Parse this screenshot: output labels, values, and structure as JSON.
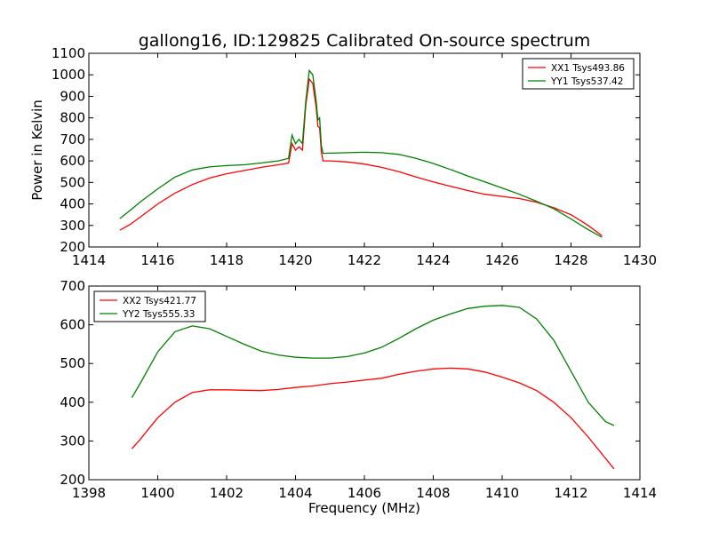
{
  "title": "gallong16, ID:129825 Calibrated On-source spectrum",
  "chart_data": [
    {
      "type": "line",
      "title": "gallong16, ID:129825 Calibrated On-source spectrum",
      "xlabel": "",
      "ylabel": "Power in Kelvin",
      "xlim": [
        1414,
        1430
      ],
      "ylim": [
        200,
        1100
      ],
      "xticks": [
        1414,
        1416,
        1418,
        1420,
        1422,
        1424,
        1426,
        1428,
        1430
      ],
      "yticks": [
        200,
        300,
        400,
        500,
        600,
        700,
        800,
        900,
        1000,
        1100
      ],
      "grid": false,
      "legend": "top-right",
      "series": [
        {
          "name": "XX1 Tsys493.86",
          "color": "#ff0000",
          "x": [
            1414.9,
            1415.2,
            1415.5,
            1416.0,
            1416.5,
            1417.0,
            1417.5,
            1418.0,
            1418.5,
            1419.0,
            1419.5,
            1419.8,
            1419.9,
            1420.0,
            1420.1,
            1420.2,
            1420.3,
            1420.4,
            1420.5,
            1420.6,
            1420.65,
            1420.7,
            1420.75,
            1420.8,
            1421.0,
            1421.5,
            1422.0,
            1422.5,
            1423.0,
            1423.5,
            1424.0,
            1424.5,
            1425.0,
            1425.5,
            1426.0,
            1426.5,
            1427.0,
            1427.5,
            1428.0,
            1428.5,
            1428.9
          ],
          "y": [
            278,
            305,
            340,
            400,
            450,
            490,
            520,
            540,
            555,
            570,
            582,
            590,
            680,
            650,
            665,
            650,
            860,
            980,
            960,
            850,
            760,
            755,
            640,
            600,
            600,
            595,
            585,
            570,
            550,
            525,
            502,
            482,
            462,
            445,
            435,
            425,
            408,
            382,
            350,
            300,
            252
          ]
        },
        {
          "name": "YY1 Tsys537.42",
          "color": "#008000",
          "x": [
            1414.9,
            1415.2,
            1415.5,
            1416.0,
            1416.5,
            1417.0,
            1417.5,
            1418.0,
            1418.5,
            1419.0,
            1419.5,
            1419.8,
            1419.9,
            1420.0,
            1420.1,
            1420.2,
            1420.3,
            1420.4,
            1420.5,
            1420.6,
            1420.65,
            1420.7,
            1420.75,
            1420.8,
            1421.0,
            1421.5,
            1422.0,
            1422.5,
            1423.0,
            1423.5,
            1424.0,
            1424.5,
            1425.0,
            1425.5,
            1426.0,
            1426.5,
            1427.0,
            1427.5,
            1428.0,
            1428.5,
            1428.9
          ],
          "y": [
            332,
            370,
            410,
            470,
            525,
            558,
            572,
            578,
            582,
            590,
            600,
            612,
            720,
            680,
            700,
            680,
            880,
            1020,
            1000,
            880,
            790,
            800,
            670,
            635,
            636,
            638,
            640,
            638,
            630,
            612,
            588,
            560,
            530,
            502,
            474,
            445,
            412,
            378,
            330,
            280,
            245
          ]
        }
      ]
    },
    {
      "type": "line",
      "title": "",
      "xlabel": "Frequency (MHz)",
      "ylabel": "",
      "xlim": [
        1398,
        1414
      ],
      "ylim": [
        200,
        700
      ],
      "xticks": [
        1398,
        1400,
        1402,
        1404,
        1406,
        1408,
        1410,
        1412,
        1414
      ],
      "yticks": [
        200,
        300,
        400,
        500,
        600,
        700
      ],
      "grid": false,
      "legend": "top-left",
      "series": [
        {
          "name": "XX2 Tsys421.77",
          "color": "#ff0000",
          "x": [
            1399.25,
            1399.5,
            1400.0,
            1400.5,
            1401.0,
            1401.5,
            1402.0,
            1402.5,
            1403.0,
            1403.5,
            1404.0,
            1404.5,
            1405.0,
            1405.5,
            1406.0,
            1406.5,
            1407.0,
            1407.5,
            1408.0,
            1408.5,
            1409.0,
            1409.5,
            1410.0,
            1410.5,
            1411.0,
            1411.5,
            1412.0,
            1412.5,
            1413.0,
            1413.25
          ],
          "y": [
            280,
            305,
            360,
            400,
            425,
            432,
            432,
            431,
            430,
            433,
            438,
            442,
            448,
            452,
            457,
            462,
            472,
            480,
            486,
            488,
            486,
            478,
            465,
            450,
            430,
            400,
            360,
            310,
            255,
            228
          ]
        },
        {
          "name": "YY2 Tsys555.33",
          "color": "#008000",
          "x": [
            1399.25,
            1399.5,
            1400.0,
            1400.5,
            1401.0,
            1401.5,
            1402.0,
            1402.5,
            1403.0,
            1403.5,
            1404.0,
            1404.5,
            1405.0,
            1405.5,
            1406.0,
            1406.5,
            1407.0,
            1407.5,
            1408.0,
            1408.5,
            1409.0,
            1409.5,
            1410.0,
            1410.5,
            1411.0,
            1411.5,
            1412.0,
            1412.5,
            1413.0,
            1413.25
          ],
          "y": [
            412,
            450,
            530,
            582,
            597,
            590,
            570,
            550,
            532,
            522,
            516,
            514,
            514,
            518,
            527,
            542,
            565,
            590,
            612,
            628,
            642,
            648,
            650,
            645,
            615,
            560,
            480,
            400,
            350,
            340
          ]
        }
      ]
    }
  ]
}
